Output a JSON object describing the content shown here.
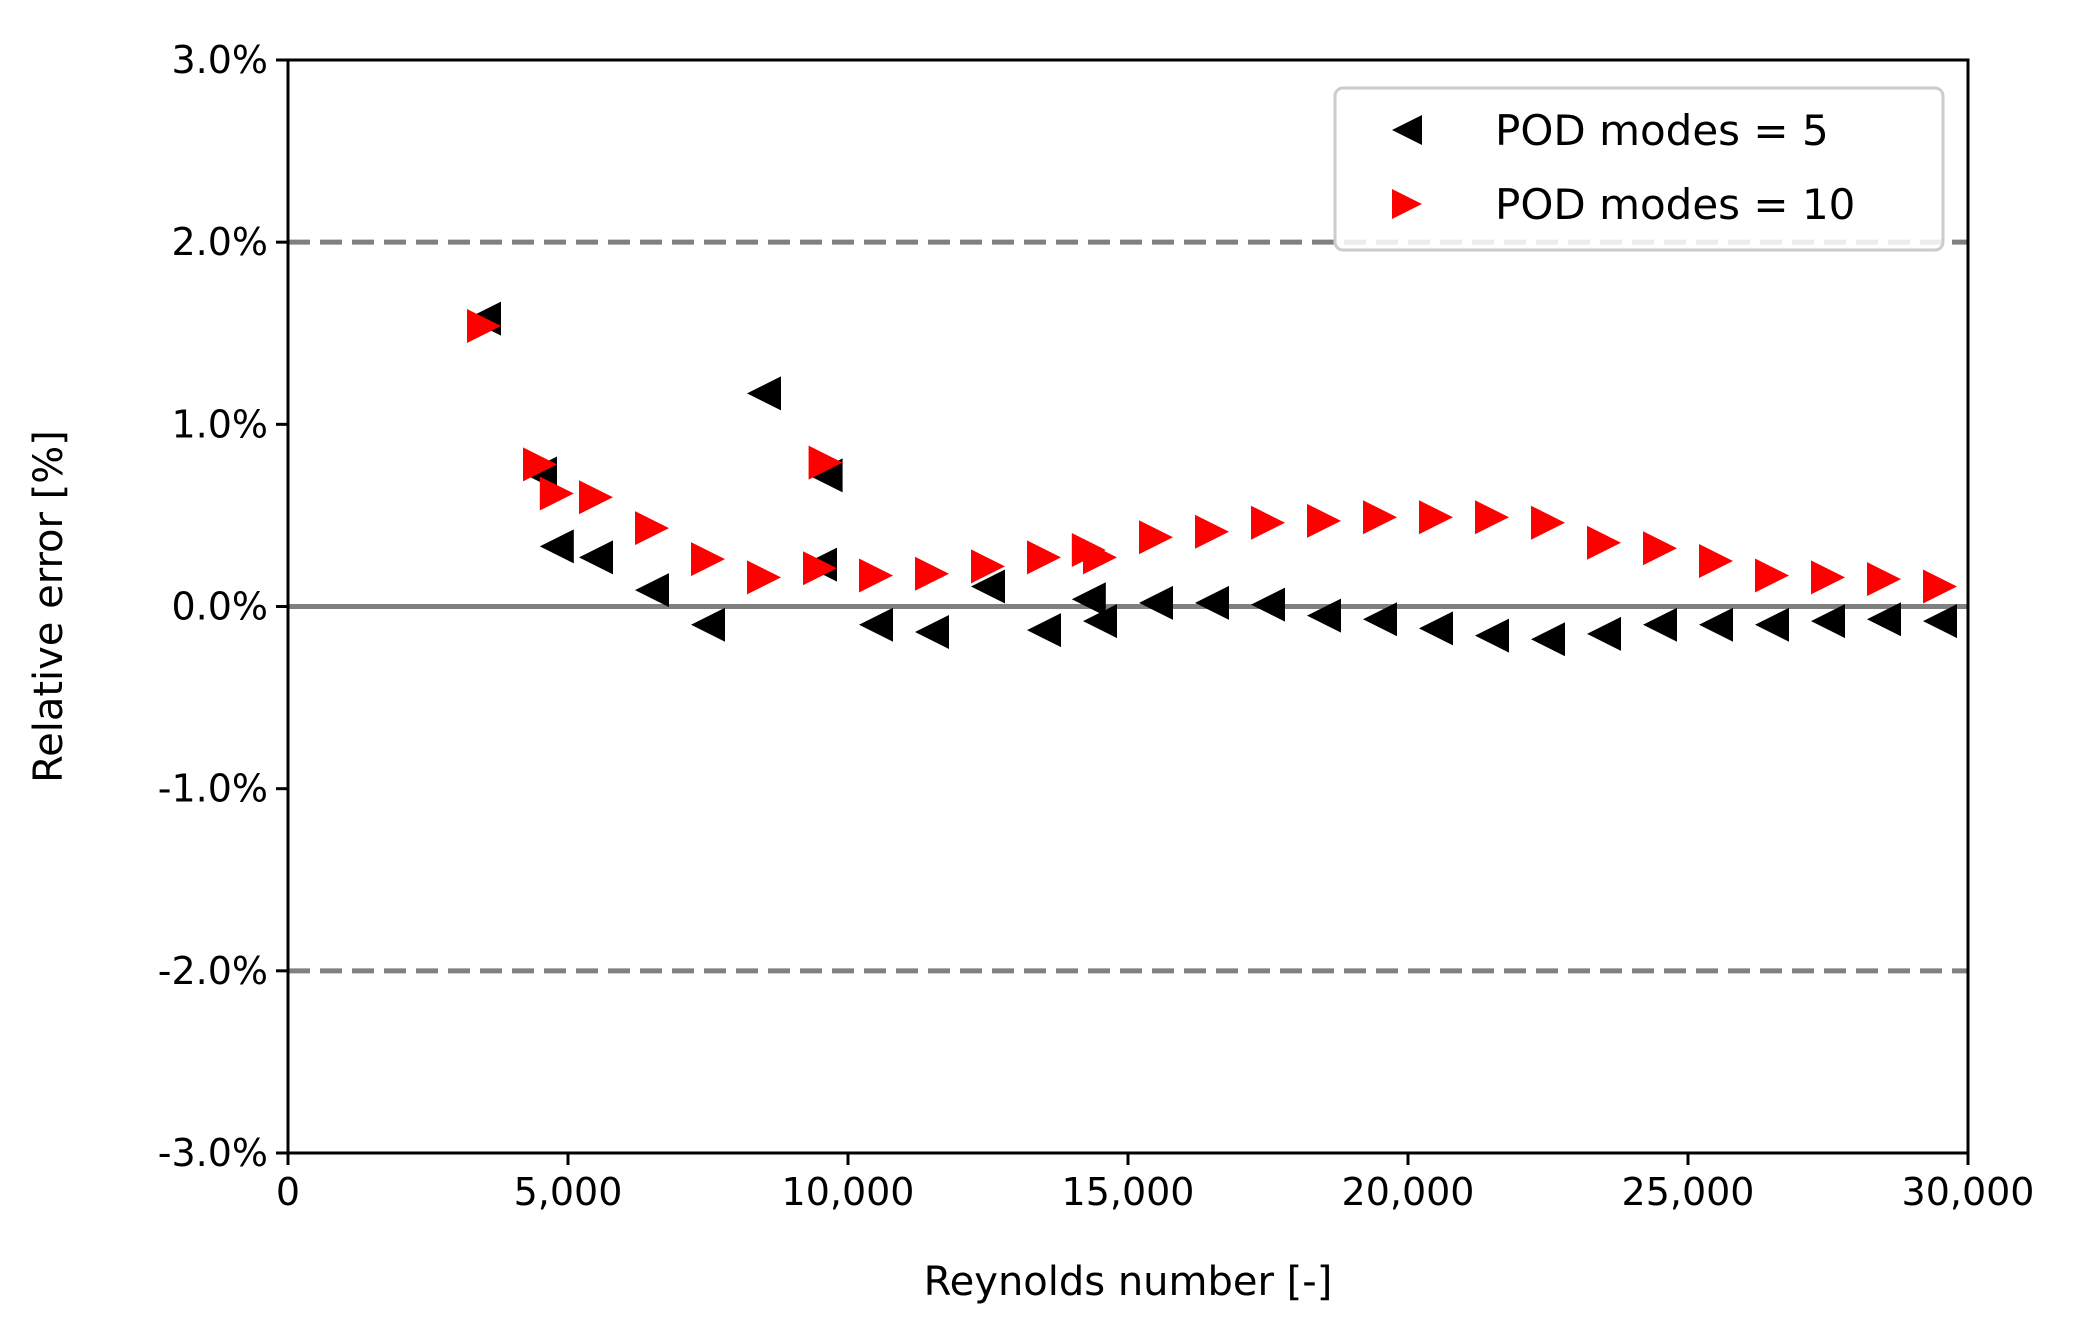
{
  "chart_data": {
    "type": "scatter",
    "title": "",
    "xlabel": "Reynolds number [-]",
    "ylabel": "Relative error [%]",
    "xlim": [
      0,
      30000
    ],
    "ylim": [
      -3.0,
      3.0
    ],
    "xticks": [
      0,
      5000,
      10000,
      15000,
      20000,
      25000,
      30000
    ],
    "xtick_labels": [
      "0",
      "5,000",
      "10,000",
      "15,000",
      "20,000",
      "25,000",
      "30,000"
    ],
    "yticks": [
      3.0,
      2.0,
      1.0,
      0.0,
      -1.0,
      -2.0,
      -3.0
    ],
    "ytick_labels": [
      "3.0%",
      "2.0%",
      "1.0%",
      "0.0%",
      "-1.0%",
      "-2.0%",
      "-3.0%"
    ],
    "reference_lines": [
      {
        "y": 2.0,
        "style": "dashed",
        "color": "#808080"
      },
      {
        "y": 0.0,
        "style": "solid",
        "color": "#808080"
      },
      {
        "y": -2.0,
        "style": "dashed",
        "color": "#808080"
      }
    ],
    "legend": {
      "position": "top-right"
    },
    "series": [
      {
        "name": "POD modes = 5",
        "marker": "triangle-left",
        "color": "#000000",
        "x": [
          3500,
          4500,
          4800,
          5500,
          6500,
          7500,
          8500,
          9500,
          9600,
          10500,
          11500,
          12500,
          13500,
          14300,
          14500,
          15500,
          16500,
          17500,
          18500,
          19500,
          20500,
          21500,
          22500,
          23500,
          24500,
          25500,
          26500,
          27500,
          28500,
          29500
        ],
        "y": [
          1.58,
          0.73,
          0.33,
          0.27,
          0.09,
          -0.1,
          1.17,
          0.23,
          0.72,
          -0.1,
          -0.14,
          0.11,
          -0.13,
          0.04,
          -0.08,
          0.02,
          0.02,
          0.01,
          -0.05,
          -0.07,
          -0.12,
          -0.16,
          -0.18,
          -0.15,
          -0.1,
          -0.1,
          -0.1,
          -0.08,
          -0.07,
          -0.08
        ]
      },
      {
        "name": "POD modes = 10",
        "marker": "triangle-right",
        "color": "#ff0000",
        "x": [
          3500,
          4500,
          4800,
          5500,
          6500,
          7500,
          8500,
          9500,
          9600,
          10500,
          11500,
          12500,
          13500,
          14300,
          14500,
          15500,
          16500,
          17500,
          18500,
          19500,
          20500,
          21500,
          22500,
          23500,
          24500,
          25500,
          26500,
          27500,
          28500,
          29500
        ],
        "y": [
          1.54,
          0.78,
          0.62,
          0.6,
          0.43,
          0.26,
          0.16,
          0.21,
          0.79,
          0.17,
          0.18,
          0.22,
          0.27,
          0.31,
          0.27,
          0.38,
          0.41,
          0.46,
          0.47,
          0.49,
          0.49,
          0.49,
          0.46,
          0.35,
          0.32,
          0.25,
          0.17,
          0.16,
          0.15,
          0.11
        ]
      }
    ]
  }
}
